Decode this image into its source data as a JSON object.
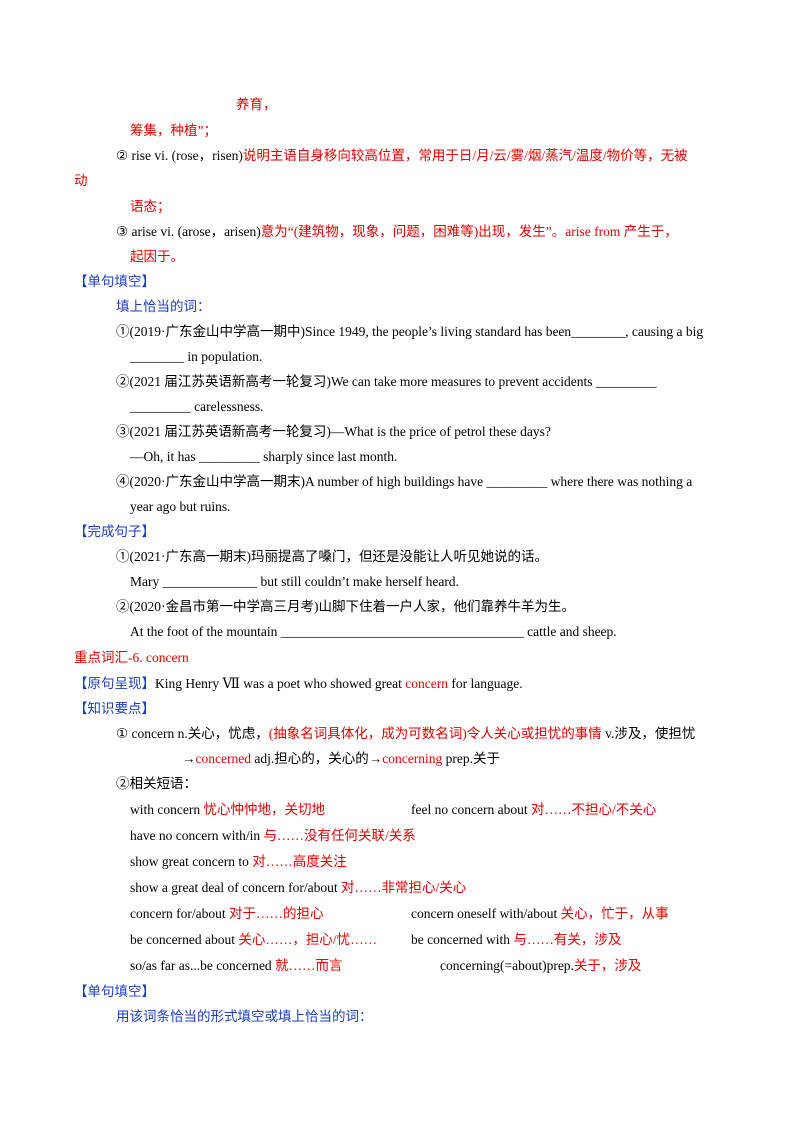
{
  "top": {
    "nurture": "养育，",
    "raise": "筹集，种植”；",
    "rise_head": "② rise  vi.  (rose，risen)",
    "rise_note": "说明主语自身移向较高位置，常用于日/月/云/雾/烟/蒸汽/温度/物价等，无被",
    "rise_note2": "动",
    "rise_note3": "语态；",
    "arise_head": "③ arise  vi.  (arose，arisen)",
    "arise_note": "意为“(建筑物，现象，问题，困难等)出现，发生”。arise from 产生于，",
    "arise_note2": "起因于。"
  },
  "fill1": {
    "heading": "【单句填空】",
    "instruction": "填上恰当的词：",
    "q1a": "①(2019·广东金山中学高一期中)Since 1949, the people’s living standard has been________, causing a big",
    "q1b": "________ in population.",
    "q2a": "②(2021 届江苏英语新高考一轮复习)We can take more measures to prevent accidents _________",
    "q2b": "_________ carelessness.",
    "q3a": "③(2021 届江苏英语新高考一轮复习)—What is the price of petrol these days?",
    "q3b": "—Oh, it has _________ sharply since last month.",
    "q4a": "④(2020·广东金山中学高一期末)A number of high buildings have _________ where there was nothing a",
    "q4b": "year ago but ruins."
  },
  "complete": {
    "heading": "【完成句子】",
    "s1a": "①(2021·广东高一期末)玛丽提高了嗓门，但还是没能让人听见她说的话。",
    "s1b": "Mary  ______________  but still couldn’t make herself  heard.",
    "s2a": "②(2020·金昌市第一中学高三月考)山脚下住着一户人家，他们靠养牛羊为生。",
    "s2b": "At the foot of the mountain  ____________________________________ cattle and sheep."
  },
  "vocab": {
    "title": "重点词汇-6. concern",
    "orig_label": "【原句呈现】",
    "orig_a": "King Henry  Ⅶ  was a poet who showed great ",
    "orig_word": "concern",
    "orig_b": "  for language.",
    "points_label": "【知识要点】",
    "p1_a": "① concern n.关心，忧虑，",
    "p1_red": "(抽象名词具体化，成为可数名词)令人关心或担忧的事情",
    "p1_b": "  v.涉及，使担忧",
    "p1_arrow": "→",
    "p1_concerned": "concerned",
    "p1_c": "  adj.担心的，关心的→",
    "p1_concerning": "concerning",
    "p1_d": "  prep.关于",
    "p2": "②相关短语：",
    "phrases": [
      {
        "en": "with concern ",
        "zh": "忧心忡忡地，关切地"
      },
      {
        "en": "feel  no  concern  about ",
        "zh": "对……不担心/不关心"
      },
      {
        "en": "have no concern with/in ",
        "zh": "与……没有任何关联/关系"
      },
      {
        "en": "show  great  concern  to ",
        "zh": "对……高度关注"
      },
      {
        "en": "show  a  great  deal  of  concern  for/about ",
        "zh": "对……非常担心/关心"
      },
      {
        "en": "concern for/about ",
        "zh": "对于……的担心"
      },
      {
        "en": "concern oneself with/about ",
        "zh": "关心，忙于，从事"
      },
      {
        "en": "be  concerned  about ",
        "zh": "关心……，担心/忧……"
      },
      {
        "en": "be  concerned  with ",
        "zh": "与……有关，涉及"
      },
      {
        "en": "so/as  far  as...be  concerned ",
        "zh": "就……而言"
      },
      {
        "en": "concerning(=about)prep.",
        "zh": "关于，涉及"
      }
    ],
    "fill_heading": "【单句填空】",
    "fill_instruction": "用该词条恰当的形式填空或填上恰当的词："
  }
}
